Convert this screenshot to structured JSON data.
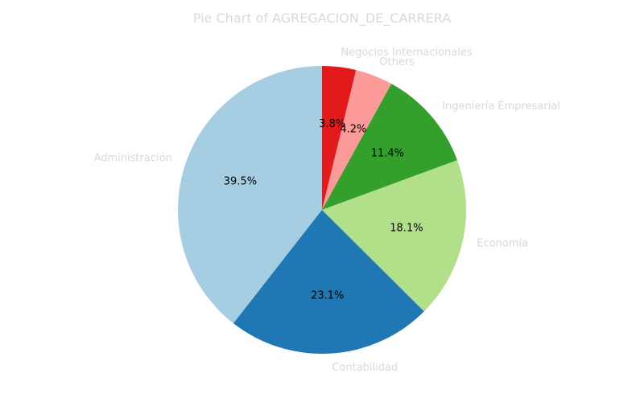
{
  "chart_data": {
    "type": "pie",
    "title": "Pie Chart of AGREGACION_DE_CARRERA",
    "start_angle_deg": 90,
    "direction": "counterclockwise",
    "slices": [
      {
        "label": "Administración",
        "value": 39.5,
        "pct_label": "39.5%",
        "color": "#a6cee3"
      },
      {
        "label": "Contabilidad",
        "value": 23.1,
        "pct_label": "23.1%",
        "color": "#1f78b4"
      },
      {
        "label": "Economía",
        "value": 18.1,
        "pct_label": "18.1%",
        "color": "#b2df8a"
      },
      {
        "label": "Ingeniería Empresarial",
        "value": 11.4,
        "pct_label": "11.4%",
        "color": "#33a02c"
      },
      {
        "label": "Others",
        "value": 4.2,
        "pct_label": "4.2%",
        "color": "#fb9a99"
      },
      {
        "label": "Negocios Internacionales",
        "value": 3.8,
        "pct_label": "3.8%",
        "color": "#e31a1c"
      }
    ],
    "label_color": "#d9d9d9",
    "pct_color": "#000000"
  }
}
